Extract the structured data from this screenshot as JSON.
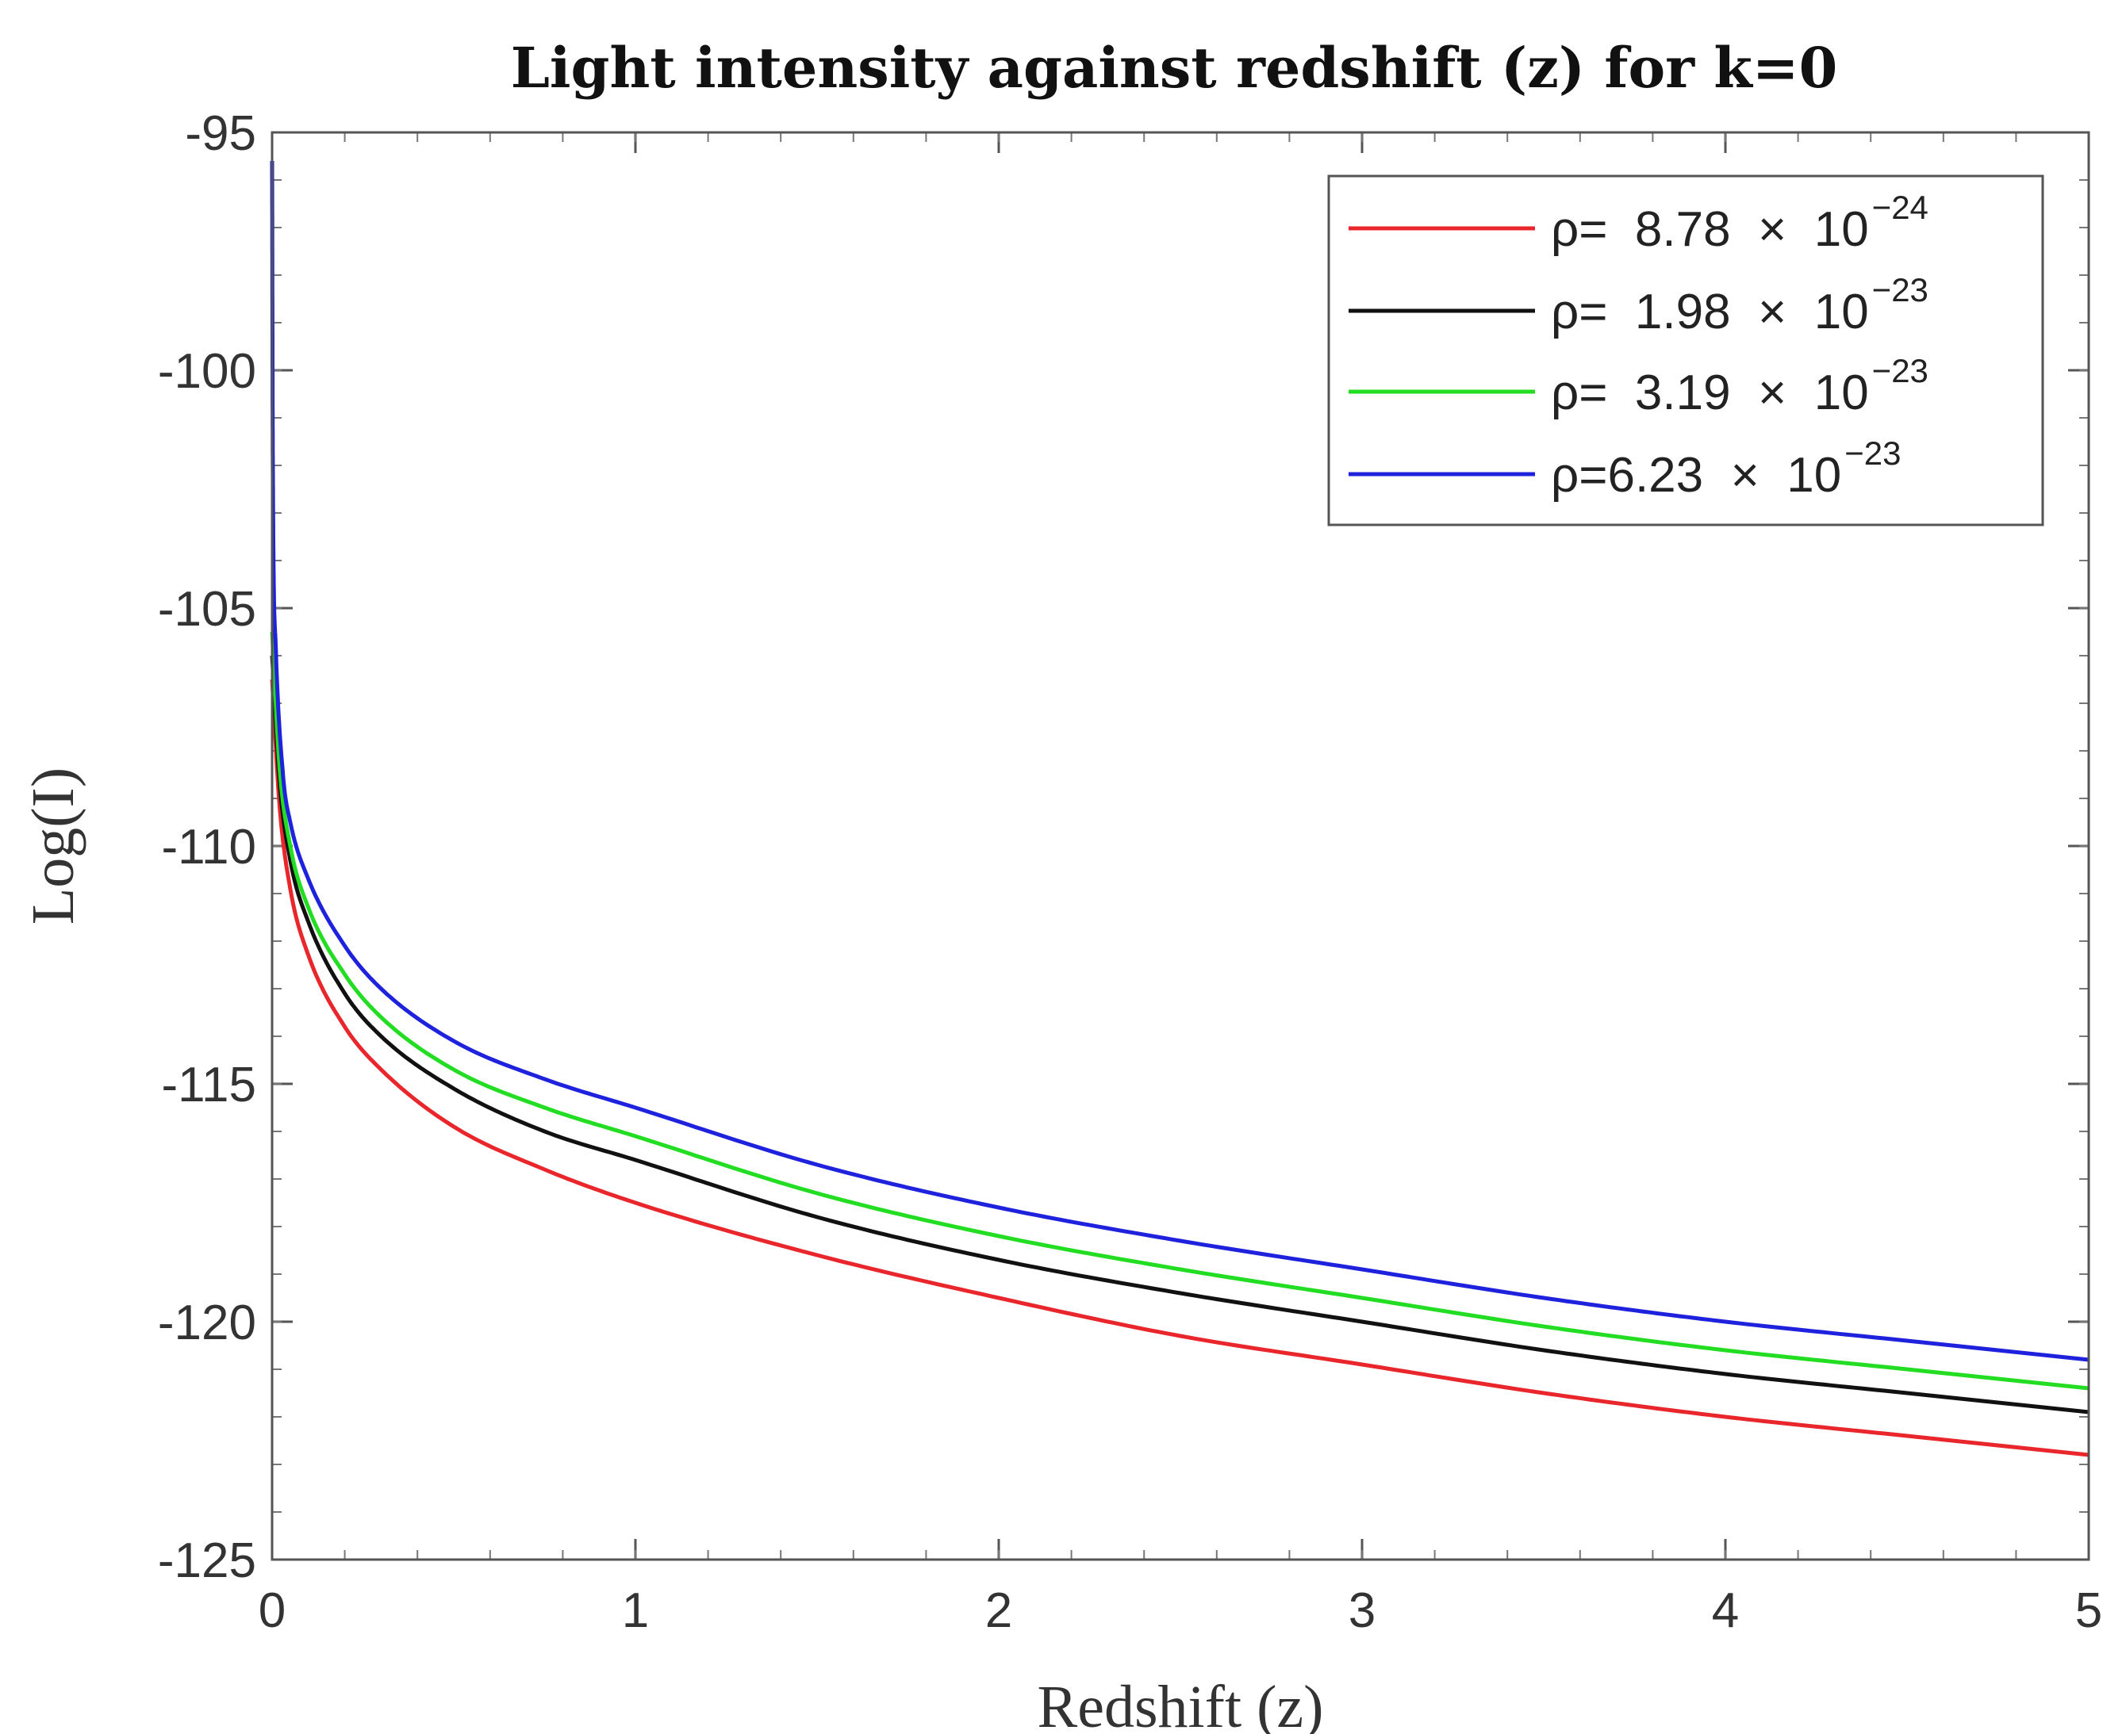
{
  "chart_data": {
    "type": "line",
    "title": "Light intensity against redshift (z) for k=0",
    "xlabel": "Redshift (z)",
    "ylabel": "Log(I)",
    "xlim": [
      0,
      5
    ],
    "ylim": [
      -125,
      -95
    ],
    "xticks": [
      "0",
      "1",
      "2",
      "3",
      "4",
      "5"
    ],
    "yticks": [
      "-95",
      "-100",
      "-105",
      "-110",
      "-115",
      "-120",
      "-125"
    ],
    "legend_position": "top-right",
    "series": [
      {
        "name": "ρ= 8.78 × 10−24",
        "label_main": "ρ=  8.78  ×  10",
        "label_exp": "−24",
        "color": "#e8262b",
        "x": [
          0,
          0.02,
          0.05,
          0.1,
          0.2,
          0.3,
          0.5,
          0.75,
          1,
          1.5,
          2,
          2.5,
          3,
          3.5,
          4,
          4.5,
          5
        ],
        "y": [
          -106.5,
          -109.1,
          -110.9,
          -112.3,
          -113.8,
          -114.7,
          -115.9,
          -116.8,
          -117.5,
          -118.6,
          -119.5,
          -120.3,
          -120.9,
          -121.5,
          -122.0,
          -122.4,
          -122.8
        ]
      },
      {
        "name": "ρ= 1.98 × 10−23",
        "label_main": "ρ=  1.98  ×  10",
        "label_exp": "−23",
        "color": "#111111",
        "x": [
          0,
          0.02,
          0.05,
          0.1,
          0.2,
          0.3,
          0.5,
          0.75,
          1,
          1.5,
          2,
          2.5,
          3,
          3.5,
          4,
          4.5,
          5
        ],
        "y": [
          -106.0,
          -108.6,
          -110.3,
          -111.6,
          -113.1,
          -114.0,
          -115.1,
          -116.0,
          -116.6,
          -117.8,
          -118.7,
          -119.4,
          -120.0,
          -120.6,
          -121.1,
          -121.5,
          -121.9
        ]
      },
      {
        "name": "ρ= 3.19 × 10−23",
        "label_main": "ρ=  3.19  ×  10",
        "label_exp": "−23",
        "color": "#22dd22",
        "x": [
          0,
          0.02,
          0.05,
          0.1,
          0.2,
          0.3,
          0.5,
          0.75,
          1,
          1.5,
          2,
          2.5,
          3,
          3.5,
          4,
          4.5,
          5
        ],
        "y": [
          -105.5,
          -108.3,
          -110.0,
          -111.3,
          -112.7,
          -113.6,
          -114.7,
          -115.5,
          -116.1,
          -117.3,
          -118.2,
          -118.9,
          -119.5,
          -120.1,
          -120.6,
          -121.0,
          -121.4
        ]
      },
      {
        "name": "ρ=6.23 × 10−23",
        "label_main": "ρ=6.23  ×  10",
        "label_exp": "−23",
        "color": "#1f22dd",
        "x": [
          0,
          0.002,
          0.01,
          0.03,
          0.05,
          0.1,
          0.2,
          0.3,
          0.5,
          0.75,
          1,
          1.5,
          2,
          2.5,
          3,
          3.5,
          4,
          4.5,
          5
        ],
        "y": [
          -95.6,
          -102.0,
          -105.8,
          -108.5,
          -109.5,
          -110.7,
          -112.1,
          -113.0,
          -114.1,
          -114.9,
          -115.5,
          -116.7,
          -117.6,
          -118.3,
          -118.9,
          -119.5,
          -120.0,
          -120.4,
          -120.8
        ]
      }
    ]
  }
}
